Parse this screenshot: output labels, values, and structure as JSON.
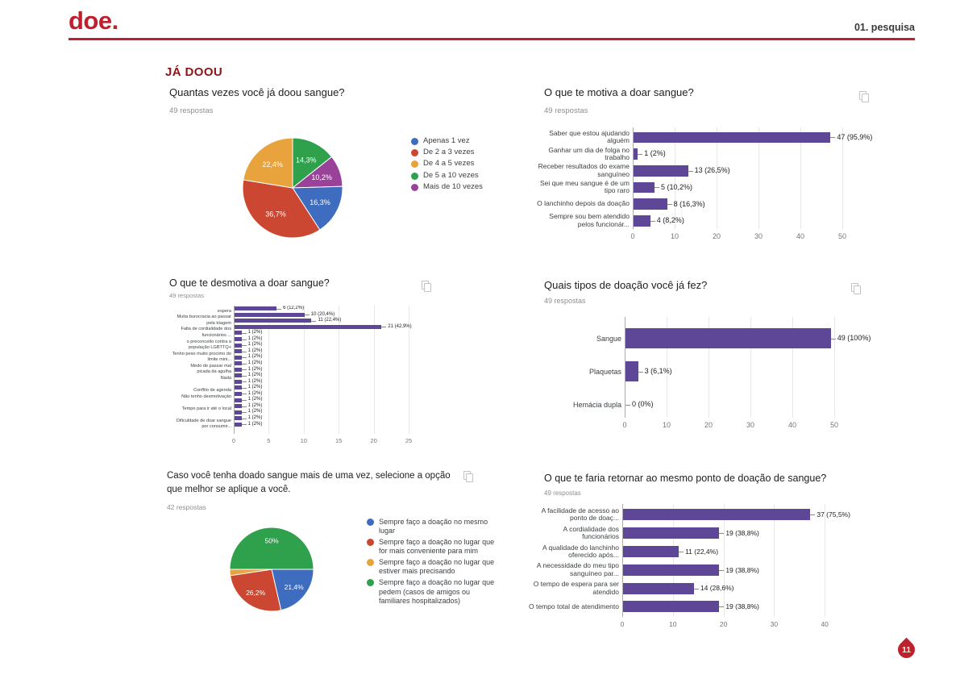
{
  "header": {
    "logo": "doe.",
    "page_label": "01. pesquisa"
  },
  "section_title": "JÁ DOOU",
  "footer": {
    "page_number": "11"
  },
  "palette": {
    "accent": "#be202e",
    "section": "#8c1518",
    "bar": "#5e4796",
    "blue": "#3e6cbf",
    "red": "#cc4732",
    "orange": "#e8a33d",
    "green": "#2fa04b",
    "purple": "#9a4299"
  },
  "chart_data": [
    {
      "type": "pie",
      "title": "Quantas vezes você já doou sangue?",
      "responses": "49 respostas",
      "rotation": 0,
      "slices": [
        {
          "color": "green",
          "value": 14.3,
          "label": "14,3%"
        },
        {
          "color": "purple",
          "value": 10.2,
          "label": "10,2%"
        },
        {
          "color": "blue",
          "value": 16.3,
          "label": "16,3%"
        },
        {
          "color": "red",
          "value": 36.7,
          "label": "36,7%"
        },
        {
          "color": "orange",
          "value": 22.4,
          "label": "22,4%"
        }
      ],
      "legend": [
        {
          "color": "blue",
          "lines": [
            "Apenas 1 vez"
          ]
        },
        {
          "color": "red",
          "lines": [
            "De 2 a 3 vezes"
          ]
        },
        {
          "color": "orange",
          "lines": [
            "De 4 a 5 vezes"
          ]
        },
        {
          "color": "green",
          "lines": [
            "De 5 a 10 vezes"
          ]
        },
        {
          "color": "purple",
          "lines": [
            "Mais de 10 vezes"
          ]
        }
      ]
    },
    {
      "type": "bar",
      "title": "O que te motiva a doar sangue?",
      "responses": "49 respostas",
      "x_ticks": [
        0,
        10,
        20,
        30,
        40,
        50
      ],
      "x_max": 50,
      "rows": [
        {
          "label": [
            "Saber que estou ajudando",
            "alguém"
          ],
          "value": 47,
          "value_label": "47 (95,9%)"
        },
        {
          "label": [
            "Ganhar um dia de folga no",
            "trabalho"
          ],
          "value": 1,
          "value_label": "1 (2%)"
        },
        {
          "label": [
            "Receber resultados do exame",
            "sanguíneo"
          ],
          "value": 13,
          "value_label": "13 (26,5%)"
        },
        {
          "label": [
            "Sei que meu sangue é de um",
            "tipo raro"
          ],
          "value": 5,
          "value_label": "5 (10,2%)"
        },
        {
          "label": [
            "O lanchinho depois da doação"
          ],
          "value": 8,
          "value_label": "8 (16,3%)"
        },
        {
          "label": [
            "Sempre sou bem atendido",
            "pelos funcionár..."
          ],
          "value": 4,
          "value_label": "4 (8,2%)"
        }
      ]
    },
    {
      "type": "bar",
      "title": "O que te desmotiva a doar sangue?",
      "responses": "49 respostas",
      "x_ticks": [
        0,
        5,
        10,
        15,
        20,
        25
      ],
      "x_max": 25,
      "rows": [
        {
          "label": [
            "Muita demora na fila de"
          ],
          "value": 6,
          "value_label": "6 (12,2%)"
        },
        {
          "label": [
            "espera"
          ],
          "value": 10,
          "value_label": "10 (20,4%)"
        },
        {
          "label": [
            "Muita burocracia ao passar"
          ],
          "value": 11,
          "value_label": "11 (22,4%)"
        },
        {
          "label": [
            "pela triagem"
          ],
          "value": 21,
          "value_label": "21 (42,9%)"
        },
        {
          "label": [
            "Falta de cordialidade dos"
          ],
          "value": 1,
          "value_label": "1 (2%)"
        },
        {
          "label": [
            "funcionários ..."
          ],
          "value": 1,
          "value_label": "1 (2%)"
        },
        {
          "label": [
            "o preconceito contra a"
          ],
          "value": 1,
          "value_label": "1 (2%)"
        },
        {
          "label": [
            "população LGBTTQ+"
          ],
          "value": 1,
          "value_label": "1 (2%)"
        },
        {
          "label": [
            "Tenho peso muito procimo do"
          ],
          "value": 1,
          "value_label": "1 (2%)"
        },
        {
          "label": [
            "limite mini..."
          ],
          "value": 1,
          "value_label": "1 (2%)"
        },
        {
          "label": [
            "Medo de passar mal"
          ],
          "value": 1,
          "value_label": "1 (2%)"
        },
        {
          "label": [
            "picada da agulha"
          ],
          "value": 1,
          "value_label": "1 (2%)"
        },
        {
          "label": [
            "Nada"
          ],
          "value": 1,
          "value_label": "1 (2%)"
        },
        {
          "label": [
            ""
          ],
          "value": 1,
          "value_label": "1 (2%)"
        },
        {
          "label": [
            "Conflito de agenda"
          ],
          "value": 1,
          "value_label": "1 (2%)"
        },
        {
          "label": [
            "Não tenho desmotivação"
          ],
          "value": 1,
          "value_label": "1 (2%)"
        },
        {
          "label": [
            ""
          ],
          "value": 1,
          "value_label": "1 (2%)"
        },
        {
          "label": [
            "Tempo para ir até o local"
          ],
          "value": 1,
          "value_label": "1 (2%)"
        },
        {
          "label": [
            ""
          ],
          "value": 1,
          "value_label": "1 (2%)"
        },
        {
          "label": [
            "Dificuldade de doar sangue"
          ],
          "value": 1,
          "value_label": "1 (2%)"
        },
        {
          "label": [
            "por consumir..."
          ],
          "value": null,
          "value_label": ""
        }
      ]
    },
    {
      "type": "bar",
      "title": "Quais tipos de doação você já fez?",
      "responses": "49 respostas",
      "x_ticks": [
        0,
        10,
        20,
        30,
        40,
        50
      ],
      "x_max": 50,
      "rows": [
        {
          "label": [
            "Sangue"
          ],
          "value": 49,
          "value_label": "49 (100%)"
        },
        {
          "label": [
            "Plaquetas"
          ],
          "value": 3,
          "value_label": "3 (6,1%)"
        },
        {
          "label": [
            "Hemácia dupla"
          ],
          "value": 0,
          "value_label": "0 (0%)"
        }
      ]
    },
    {
      "type": "pie",
      "title": "Caso você tenha doado sangue mais de uma vez, selecione a opção que melhor se aplique a você.",
      "responses": "42 respostas",
      "rotation": 90,
      "slices": [
        {
          "color": "blue",
          "value": 21.4,
          "label": "21,4%"
        },
        {
          "color": "red",
          "value": 26.2,
          "label": "26,2%"
        },
        {
          "color": "orange",
          "value": 2.4,
          "label": ""
        },
        {
          "color": "green",
          "value": 50,
          "label": "50%"
        }
      ],
      "legend": [
        {
          "color": "blue",
          "lines": [
            "Sempre faço a doação no mesmo",
            "lugar"
          ]
        },
        {
          "color": "red",
          "lines": [
            "Sempre faço a doação no lugar que",
            "for mais conveniente para mim"
          ]
        },
        {
          "color": "orange",
          "lines": [
            "Sempre faço a doação no lugar que",
            "estiver mais precisando"
          ]
        },
        {
          "color": "green",
          "lines": [
            "Sempre faço a doação no lugar que",
            "pedem (casos de amigos ou",
            "familiares hospitalizados)"
          ]
        }
      ]
    },
    {
      "type": "bar",
      "title": "O que te faria retornar ao mesmo ponto de doação de sangue?",
      "responses": "49 respostas",
      "x_ticks": [
        0,
        10,
        20,
        30,
        40
      ],
      "x_max": 40,
      "rows": [
        {
          "label": [
            "A facilidade de acesso ao",
            "ponto de doaç..."
          ],
          "value": 37,
          "value_label": "37 (75,5%)"
        },
        {
          "label": [
            "A cordialidade dos",
            "funcionários"
          ],
          "value": 19,
          "value_label": "19 (38,8%)"
        },
        {
          "label": [
            "A qualidade do lanchinho",
            "oferecido após..."
          ],
          "value": 11,
          "value_label": "11 (22,4%)"
        },
        {
          "label": [
            "A necessidade do meu tipo",
            "sanguíneo par..."
          ],
          "value": 19,
          "value_label": "19 (38,8%)"
        },
        {
          "label": [
            "O tempo de espera para ser",
            "atendido"
          ],
          "value": 14,
          "value_label": "14 (28,6%)"
        },
        {
          "label": [
            "O tempo total de atendimento"
          ],
          "value": 19,
          "value_label": "19 (38,8%)"
        }
      ]
    }
  ]
}
